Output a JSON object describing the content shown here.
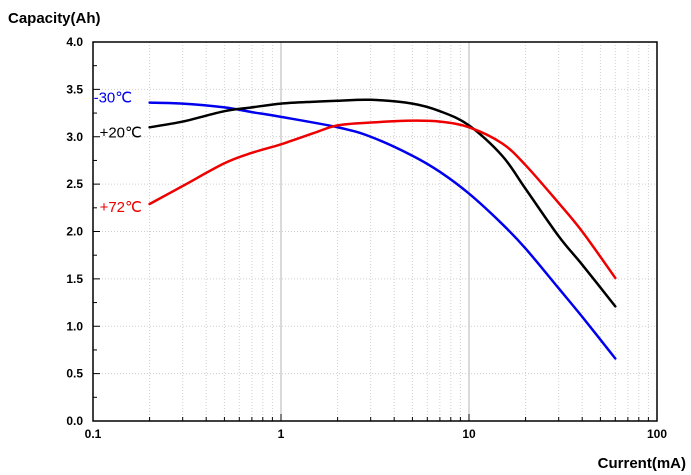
{
  "chart_data": {
    "type": "line",
    "xlabel": "Current(mA)",
    "ylabel": "Capacity(Ah)",
    "xscale": "log",
    "xlim": [
      0.1,
      100
    ],
    "ylim": [
      0.0,
      4.0
    ],
    "xticks": [
      0.1,
      1,
      10,
      100
    ],
    "xtick_labels": [
      "0.1",
      "1",
      "10",
      "100"
    ],
    "yticks": [
      0.0,
      0.5,
      1.0,
      1.5,
      2.0,
      2.5,
      3.0,
      3.5,
      4.0
    ],
    "ytick_labels": [
      "0.0",
      "0.5",
      "1.0",
      "1.5",
      "2.0",
      "2.5",
      "3.0",
      "3.5",
      "4.0"
    ],
    "grid": true,
    "series": [
      {
        "name": "-30℃",
        "color": "#0000ee",
        "x": [
          0.2,
          0.3,
          0.5,
          0.7,
          1,
          2,
          3,
          5,
          7,
          10,
          15,
          20,
          30,
          40,
          60
        ],
        "y": [
          3.36,
          3.35,
          3.31,
          3.26,
          3.21,
          3.1,
          3.0,
          2.8,
          2.63,
          2.4,
          2.08,
          1.82,
          1.4,
          1.1,
          0.66
        ]
      },
      {
        "name": "+20℃",
        "color": "#000000",
        "x": [
          0.2,
          0.3,
          0.5,
          0.7,
          1,
          1.5,
          2,
          3,
          5,
          7,
          10,
          15,
          20,
          30,
          40,
          60
        ],
        "y": [
          3.1,
          3.16,
          3.27,
          3.31,
          3.35,
          3.37,
          3.38,
          3.39,
          3.35,
          3.27,
          3.12,
          2.8,
          2.45,
          1.95,
          1.65,
          1.21
        ]
      },
      {
        "name": "+72℃",
        "color": "#ee0000",
        "x": [
          0.2,
          0.3,
          0.5,
          0.7,
          1,
          1.5,
          2,
          3,
          5,
          7,
          10,
          15,
          20,
          30,
          40,
          60
        ],
        "y": [
          2.29,
          2.48,
          2.72,
          2.83,
          2.92,
          3.04,
          3.12,
          3.15,
          3.17,
          3.16,
          3.1,
          2.93,
          2.7,
          2.3,
          2.0,
          1.51
        ]
      }
    ]
  }
}
